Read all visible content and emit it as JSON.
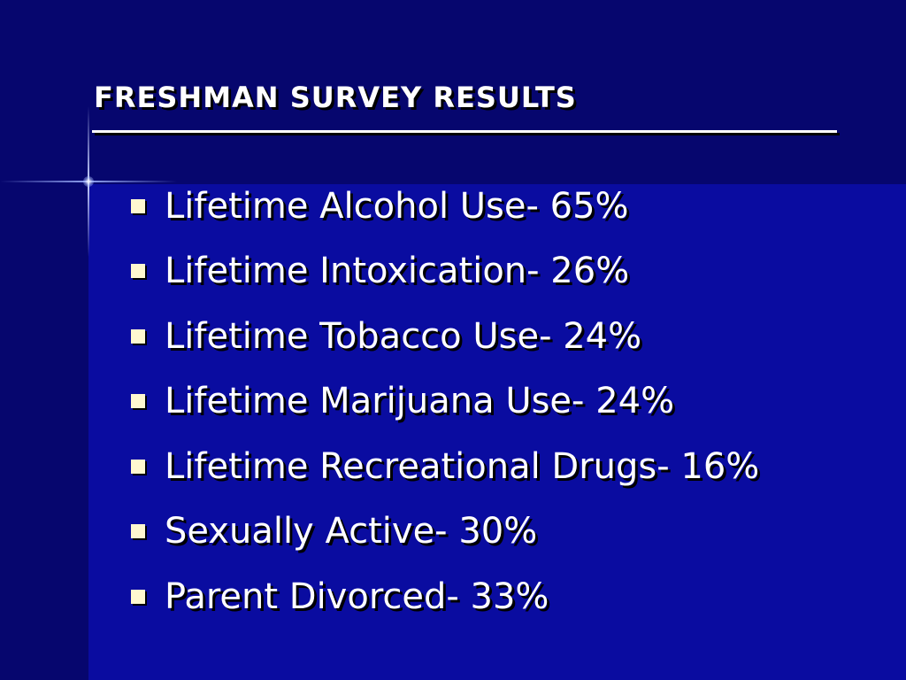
{
  "slide": {
    "title": "Freshman Survey Results",
    "bullets": [
      {
        "text": "Lifetime Alcohol Use- 65%"
      },
      {
        "text": "Lifetime Intoxication- 26%"
      },
      {
        "text": "Lifetime Tobacco Use- 24%"
      },
      {
        "text": "Lifetime Marijuana Use- 24%"
      },
      {
        "text": "Lifetime Recreational Drugs- 16%"
      },
      {
        "text": "Sexually Active- 30%"
      },
      {
        "text": "Parent Divorced- 33%"
      }
    ]
  },
  "colors": {
    "background": "#07067a",
    "panel": "#0a0ca0",
    "text": "#ffffff",
    "bullet": "#fff8d0"
  }
}
